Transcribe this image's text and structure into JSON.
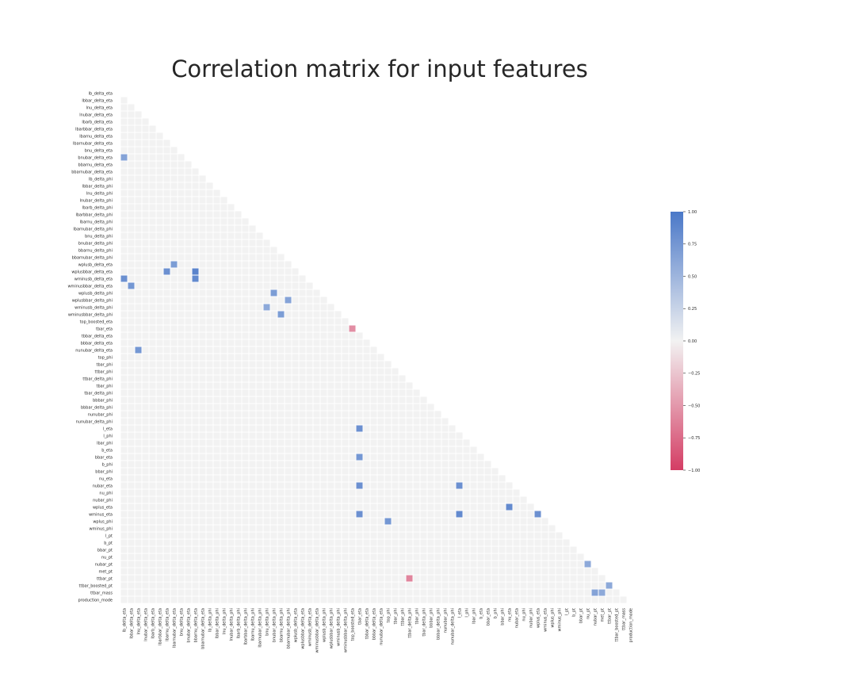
{
  "chart_data": {
    "type": "heatmap",
    "title": "Correlation matrix for input features",
    "xlabel": "",
    "ylabel": "",
    "mask": "upper-triangle",
    "colormap": {
      "negative": "#d43d64",
      "zero": "#f2f2f2",
      "positive": "#4a78c8",
      "range": [
        -1,
        1
      ],
      "ticks": [
        "1.00",
        "0.75",
        "0.50",
        "0.25",
        "0.00",
        "−0.25",
        "−0.50",
        "−0.75",
        "−1.00"
      ]
    },
    "features": [
      "lb_delta_eta",
      "lbbar_delta_eta",
      "lnu_delta_eta",
      "lnubar_delta_eta",
      "lbarb_delta_eta",
      "lbarbbar_delta_eta",
      "lbarnu_delta_eta",
      "lbarnubar_delta_eta",
      "bnu_delta_eta",
      "bnubar_delta_eta",
      "bbarnu_delta_eta",
      "bbarnubar_delta_eta",
      "lb_delta_phi",
      "lbbar_delta_phi",
      "lnu_delta_phi",
      "lnubar_delta_phi",
      "lbarb_delta_phi",
      "lbarbbar_delta_phi",
      "lbarnu_delta_phi",
      "lbarnubar_delta_phi",
      "bnu_delta_phi",
      "bnubar_delta_phi",
      "bbarnu_delta_phi",
      "bbarnubar_delta_phi",
      "wplusb_delta_eta",
      "wplusbbar_delta_eta",
      "wminusb_delta_eta",
      "wminusbbar_delta_eta",
      "wplusb_delta_phi",
      "wplusbbar_delta_phi",
      "wminusb_delta_phi",
      "wminusbbar_delta_phi",
      "top_boosted_eta",
      "tbar_eta",
      "tbbar_delta_eta",
      "bbbar_delta_eta",
      "nunubar_delta_eta",
      "top_phi",
      "tbar_phi",
      "ttbar_phi",
      "ttbar_delta_phi",
      "tbar_phi",
      "tbar_delta_phi",
      "bbbar_phi",
      "bbbar_delta_phi",
      "nunubar_phi",
      "nunubar_delta_phi",
      "l_eta",
      "l_phi",
      "lbar_phi",
      "b_eta",
      "bbar_eta",
      "b_phi",
      "bbar_phi",
      "nu_eta",
      "nubar_eta",
      "nu_phi",
      "nubar_phi",
      "wplus_eta",
      "wminus_eta",
      "wplus_phi",
      "wminus_phi",
      "l_pt",
      "b_pt",
      "bbar_pt",
      "nu_pt",
      "nubar_pt",
      "met_pt",
      "ttbar_pt",
      "ttbar_boosted_pt",
      "ttbar_mass",
      "production_mode"
    ],
    "xtick_labels": [
      "lb_delta_eta",
      "lbbar_delta_eta",
      "lnu_delta_eta",
      "lnubar_delta_eta",
      "lbarb_delta_eta",
      "lbarbbar_delta_eta",
      "lbarnu_delta_eta",
      "lbarnubar_delta_eta",
      "bnu_delta_eta",
      "bnubar_delta_eta",
      "bbarnu_delta_eta",
      "bbarnubar_delta_eta",
      "lb_delta_phi",
      "lbbar_delta_phi",
      "lnu_delta_phi",
      "lnubar_delta_phi",
      "lbarb_delta_phi",
      "lbarbbar_delta_phi",
      "lbarnu_delta_phi",
      "lbarnubar_delta_phi",
      "bnu_delta_phi",
      "bnubar_delta_phi",
      "bbarnu_delta_phi",
      "bbarnubar_delta_phi",
      "wplusb_delta_eta",
      "wplusbbar_delta_eta",
      "wminusb_delta_eta",
      "wminusbbar_delta_eta",
      "wplusb_delta_phi",
      "wplusbbar_delta_phi",
      "wminusb_delta_phi",
      "wminusbbar_delta_phi",
      "top_boosted_eta",
      "tbar_eta",
      "tbbar_delta_eta",
      "bbbar_delta_eta",
      "nunubar_delta_eta",
      "top_phi",
      "tbar_phi",
      "ttbar_phi",
      "ttbar_delta_phi",
      "tbar_phi",
      "tbar_delta_phi",
      "bbbar_phi",
      "bbbar_delta_phi",
      "nunubar_phi",
      "nunubar_delta_phi",
      "l_eta",
      "l_phi",
      "lbar_phi",
      "b_eta",
      "bbar_eta",
      "b_phi",
      "bbar_phi",
      "nu_eta",
      "nubar_eta",
      "nu_phi",
      "nubar_phi",
      "wplus_eta",
      "wminus_eta",
      "wplus_phi",
      "wminus_phi",
      "l_pt",
      "b_pt",
      "bbar_pt",
      "nu_pt",
      "nubar_pt",
      "met_pt",
      "ttbar_pt",
      "ttbar_boosted_pt",
      "ttbar_mass",
      "production_mode"
    ],
    "strong_correlations": [
      {
        "row": "wminusb_delta_eta",
        "col": "lb_delta_eta",
        "value": 0.8
      },
      {
        "row": "bnubar_delta_eta",
        "col": "lb_delta_eta",
        "value": 0.65
      },
      {
        "row": "wplusbbar_delta_eta",
        "col": "lbarnu_delta_eta",
        "value": 0.8
      },
      {
        "row": "wminusbbar_delta_eta",
        "col": "lbbar_delta_eta",
        "value": 0.75
      },
      {
        "row": "wminusb_delta_eta",
        "col": "bbarnu_delta_eta",
        "value": 0.85
      },
      {
        "row": "wplusbbar_delta_eta",
        "col": "bbarnu_delta_eta",
        "value": 0.9
      },
      {
        "row": "wplusb_delta_eta",
        "col": "lbarnubar_delta_eta",
        "value": 0.7
      },
      {
        "row": "wplusb_delta_phi",
        "col": "bnubar_delta_phi",
        "value": 0.7
      },
      {
        "row": "wplusbbar_delta_phi",
        "col": "bbarnubar_delta_phi",
        "value": 0.65
      },
      {
        "row": "wminusb_delta_phi",
        "col": "bnu_delta_phi",
        "value": 0.6
      },
      {
        "row": "wminusbbar_delta_phi",
        "col": "bbarnu_delta_phi",
        "value": 0.7
      },
      {
        "row": "tbar_eta",
        "col": "top_boosted_eta",
        "value": -0.55
      },
      {
        "row": "nunubar_delta_eta",
        "col": "lnu_delta_eta",
        "value": 0.75
      },
      {
        "row": "l_eta",
        "col": "tbar_eta",
        "value": 0.8
      },
      {
        "row": "bbar_eta",
        "col": "tbar_eta",
        "value": 0.75
      },
      {
        "row": "nubar_eta",
        "col": "tbar_eta",
        "value": 0.8
      },
      {
        "row": "wminus_eta",
        "col": "tbar_eta",
        "value": 0.8
      },
      {
        "row": "wminus_eta",
        "col": "l_eta",
        "value": 0.85
      },
      {
        "row": "nubar_eta",
        "col": "l_eta",
        "value": 0.8
      },
      {
        "row": "wplus_eta",
        "col": "nu_eta",
        "value": 0.85
      },
      {
        "row": "wminus_eta",
        "col": "wplus_eta",
        "value": 0.8
      },
      {
        "row": "wplus_phi",
        "col": "top_phi",
        "value": 0.75
      },
      {
        "row": "nubar_pt",
        "col": "nu_pt",
        "value": 0.6
      },
      {
        "row": "ttbar_pt",
        "col": "ttbar_delta_phi",
        "value": -0.6
      },
      {
        "row": "ttbar_boosted_pt",
        "col": "ttbar_pt",
        "value": 0.6
      },
      {
        "row": "ttbar_mass",
        "col": "nubar_pt",
        "value": 0.65
      },
      {
        "row": "ttbar_mass",
        "col": "met_pt",
        "value": 0.6
      }
    ]
  }
}
